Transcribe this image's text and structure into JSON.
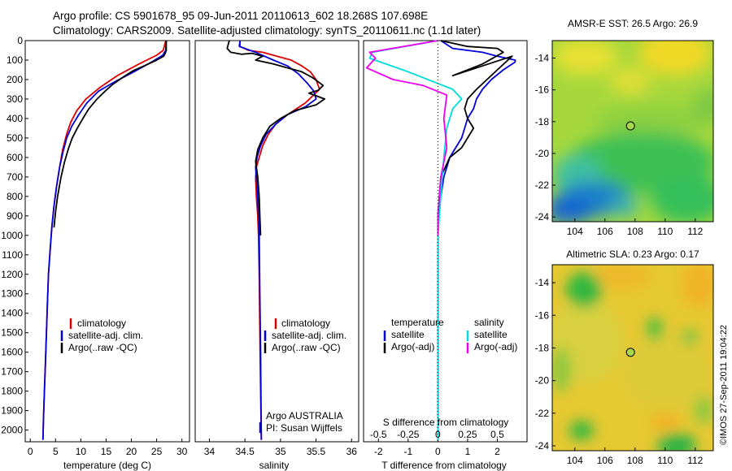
{
  "header": {
    "line1": "Argo profile: CS 5901678_95 09-Jun-2011 20110613_602 18.268S 107.698E",
    "line2": "Climatology: CARS2009. Satellite-adjusted climatology: synTS_20110611.nc (1.1d later)"
  },
  "footer_stamp": "©IMOS 27-Sep-2011 19:04:22",
  "colors": {
    "climatology": "#dd0000",
    "satellite": "#0000dd",
    "argo": "#000000",
    "argo_s_adj": "#ee00ee",
    "sat_s": "#00dddd"
  },
  "chart_data": [
    {
      "type": "line",
      "xlabel": "temperature (deg C)",
      "xticks": [
        "0",
        "5",
        "10",
        "15",
        "20",
        "25",
        "30"
      ],
      "xlim": [
        -1,
        31.5
      ],
      "ylim": [
        2060,
        0
      ],
      "yticks": [
        "0",
        "100",
        "200",
        "300",
        "400",
        "500",
        "600",
        "700",
        "800",
        "900",
        "1000",
        "1100",
        "1200",
        "1300",
        "1400",
        "1500",
        "1600",
        "1700",
        "1800",
        "1900",
        "2000"
      ],
      "legend": [
        "climatology",
        "satellite-adj. clim.",
        "Argo(..raw -QC)"
      ],
      "series": [
        {
          "key": "climatology",
          "x": [
            26.8,
            26.3,
            25,
            21.5,
            17.2,
            13.8,
            11,
            9.2,
            8,
            7.2,
            6.4,
            5.8,
            5.2,
            4.7,
            4.3,
            4,
            3.6,
            3.4,
            3.2,
            3,
            2.8,
            2.6,
            2.5
          ],
          "y": [
            0,
            50,
            75,
            120,
            180,
            240,
            300,
            360,
            420,
            480,
            560,
            650,
            750,
            850,
            950,
            1050,
            1200,
            1350,
            1500,
            1650,
            1800,
            1950,
            2050
          ]
        },
        {
          "key": "satellite",
          "x": [
            26.9,
            26.8,
            26.2,
            24,
            20.5,
            16.8,
            13.5,
            11.2,
            9.6,
            8.2,
            7.2,
            6.5,
            5.8,
            5.2,
            4.7,
            4.3,
            4,
            3.6,
            3.4,
            3.2,
            3,
            2.8,
            2.6,
            2.5
          ],
          "y": [
            0,
            50,
            75,
            110,
            160,
            210,
            260,
            320,
            380,
            440,
            500,
            570,
            650,
            750,
            850,
            950,
            1050,
            1200,
            1350,
            1500,
            1650,
            1800,
            1950,
            2050
          ]
        },
        {
          "key": "argo",
          "x": [
            26.9,
            26.9,
            26.7,
            26.4,
            25,
            22.5,
            20.3,
            18.5,
            16.3,
            15,
            13.2,
            11.6,
            10.4,
            9.3,
            8.3,
            7.6,
            6.8,
            6.1,
            5.4,
            5,
            4.7
          ],
          "y": [
            0,
            50,
            65,
            80,
            100,
            130,
            155,
            185,
            225,
            255,
            300,
            350,
            400,
            450,
            500,
            550,
            620,
            700,
            800,
            880,
            960
          ]
        }
      ]
    },
    {
      "type": "line",
      "xlabel": "salinity",
      "xticks": [
        "34",
        "34.5",
        "35",
        "35.5",
        "36"
      ],
      "xlim": [
        33.8,
        36.1
      ],
      "ylim": [
        2060,
        0
      ],
      "legend": [
        "climatology",
        "satellite-adj. clim.",
        "Argo(..raw -QC)"
      ],
      "annotation": [
        "Argo AUSTRALIA",
        "PI: Susan Wijffels"
      ],
      "series": [
        {
          "key": "climatology",
          "x": [
            34.43,
            34.43,
            34.55,
            34.75,
            34.95,
            35.15,
            35.3,
            35.42,
            35.5,
            35.55,
            35.35,
            35.1,
            34.93,
            34.83,
            34.75,
            34.7,
            34.66,
            34.65,
            34.66,
            34.68,
            34.69,
            34.7,
            34.71,
            34.72,
            34.73
          ],
          "y": [
            0,
            30,
            50,
            60,
            80,
            100,
            130,
            160,
            200,
            250,
            320,
            380,
            430,
            480,
            540,
            600,
            650,
            700,
            800,
            900,
            1000,
            1200,
            1500,
            1800,
            2050
          ]
        },
        {
          "key": "satellite",
          "x": [
            34.43,
            34.42,
            34.65,
            34.9,
            35.1,
            35.25,
            35.38,
            35.47,
            35.5,
            35.35,
            35.1,
            34.93,
            34.8,
            34.72,
            34.67,
            34.65,
            34.66,
            34.68,
            34.69,
            34.7,
            34.71,
            34.72,
            34.73
          ],
          "y": [
            0,
            30,
            60,
            100,
            130,
            170,
            220,
            260,
            300,
            340,
            380,
            430,
            480,
            540,
            600,
            650,
            700,
            800,
            900,
            1000,
            1300,
            1600,
            2050
          ]
        },
        {
          "key": "argo",
          "x": [
            34.28,
            34.25,
            34.3,
            34.45,
            34.6,
            34.75,
            34.65,
            34.9,
            35.1,
            35.3,
            35.45,
            35.6,
            35.53,
            35.4,
            35.62,
            35.5,
            35.2,
            35,
            34.85,
            34.75,
            34.68,
            34.65,
            34.66,
            34.68,
            34.7,
            34.71,
            34.72
          ],
          "y": [
            0,
            40,
            60,
            70,
            65,
            80,
            100,
            120,
            140,
            160,
            190,
            230,
            255,
            270,
            300,
            330,
            360,
            400,
            440,
            500,
            560,
            620,
            650,
            700,
            800,
            900,
            1000
          ]
        }
      ]
    },
    {
      "type": "line",
      "xlabel": "T difference from climatology",
      "xlabel_top": "S difference from climatology",
      "xticks": [
        "-2",
        "-1",
        "0",
        "1",
        "2"
      ],
      "xticks_top": [
        "-0.5",
        "-0.25",
        "0",
        "0.25",
        "0.5"
      ],
      "xlim": [
        -2.5,
        3
      ],
      "ylim": [
        2060,
        0
      ],
      "legend_groups": [
        {
          "title": "temperature",
          "items": [
            "satellite",
            "Argo(-adj)"
          ]
        },
        {
          "title": "salinity",
          "items": [
            "satellite",
            "Argo(-adj)"
          ]
        }
      ],
      "series": [
        {
          "key": "satellite",
          "x": [
            0.1,
            0.5,
            1.5,
            2,
            2.3,
            2.6,
            2.6,
            2.2,
            1.8,
            1.5,
            1.3,
            1.2,
            1,
            0.9,
            0.8,
            0.6,
            0.4,
            0.2,
            0.05,
            0,
            0,
            0
          ],
          "y": [
            0,
            40,
            60,
            80,
            90,
            100,
            110,
            150,
            200,
            250,
            300,
            350,
            400,
            450,
            500,
            550,
            600,
            700,
            850,
            1000,
            1500,
            2050
          ]
        },
        {
          "key": "argo",
          "x": [
            0.1,
            1,
            2,
            2.2,
            1.5,
            0.5,
            2.5,
            2,
            1.3,
            1,
            0.9,
            1,
            1.2,
            1,
            0.8,
            0.4,
            0.1,
            0,
            0
          ],
          "y": [
            0,
            30,
            40,
            60,
            120,
            180,
            80,
            150,
            250,
            300,
            350,
            400,
            450,
            500,
            550,
            600,
            700,
            900,
            1000
          ]
        },
        {
          "key": "sat_s",
          "x": [
            0,
            -2.2,
            -2.3,
            -1,
            0.5,
            0.8,
            0.5,
            0.3,
            0.2,
            0.1,
            0,
            0
          ],
          "y": [
            0,
            60,
            90,
            160,
            250,
            300,
            350,
            450,
            600,
            800,
            1000,
            2050
          ]
        },
        {
          "key": "argo_s_adj",
          "x": [
            0,
            -2.3,
            -2.1,
            -2.4,
            -1.5,
            -0.5,
            0.3,
            0.2,
            0.3,
            0.1,
            0,
            0
          ],
          "y": [
            0,
            60,
            90,
            140,
            200,
            230,
            280,
            400,
            550,
            700,
            900,
            1000
          ]
        }
      ]
    },
    {
      "type": "heatmap",
      "title": "AMSR-E SST: 26.5 Argo: 26.9",
      "xticks": [
        "104",
        "106",
        "108",
        "110",
        "112"
      ],
      "yticks": [
        "-14",
        "-16",
        "-18",
        "-20",
        "-22",
        "-24"
      ],
      "xlim": [
        102.5,
        113.2
      ],
      "ylim": [
        -24.3,
        -12.9
      ],
      "marker": [
        107.698,
        -18.268
      ]
    },
    {
      "type": "heatmap",
      "title": "Altimetric SLA: 0.23 Argo: 0.17",
      "xticks": [
        "104",
        "106",
        "108",
        "110",
        "112"
      ],
      "yticks": [
        "-14",
        "-16",
        "-18",
        "-20",
        "-22",
        "-24"
      ],
      "xlim": [
        102.5,
        113.2
      ],
      "ylim": [
        -24.3,
        -12.9
      ],
      "marker": [
        107.698,
        -18.268
      ]
    }
  ]
}
